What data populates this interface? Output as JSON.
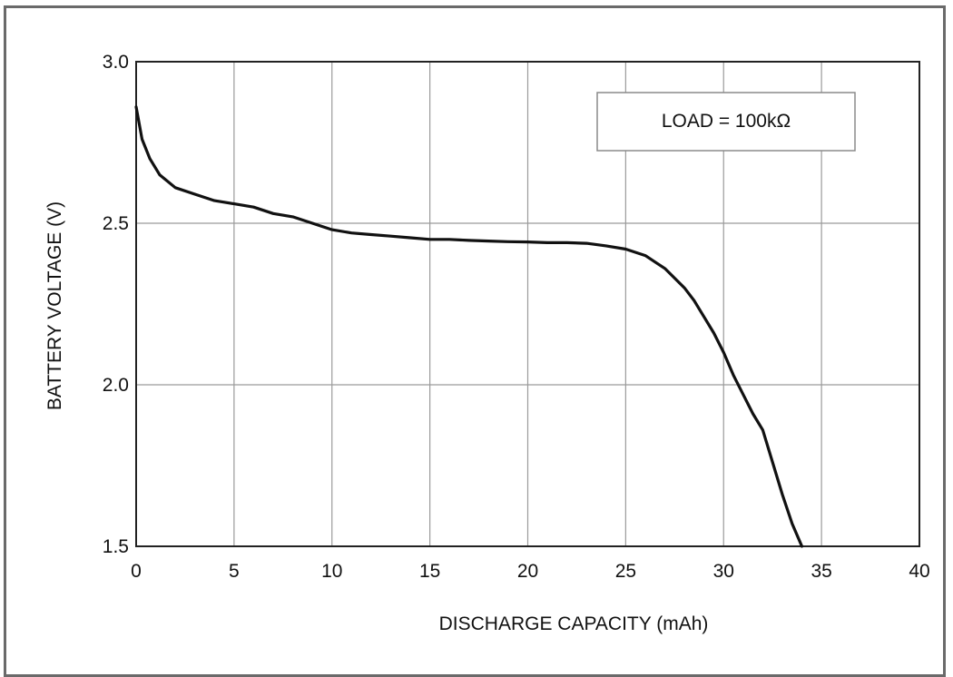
{
  "chart_data": {
    "type": "line",
    "title": "",
    "xlabel": "DISCHARGE CAPACITY (mAh)",
    "ylabel": "BATTERY VOLTAGE (V)",
    "xlim": [
      0,
      40
    ],
    "ylim": [
      1.5,
      3.0
    ],
    "xticks": [
      0,
      5,
      10,
      15,
      20,
      25,
      30,
      35,
      40
    ],
    "xtick_labels": [
      "0",
      "5",
      "10",
      "15",
      "20",
      "25",
      "30",
      "35",
      "40"
    ],
    "yticks": [
      1.5,
      2.0,
      2.5,
      3.0
    ],
    "ytick_labels": [
      "1.5",
      "2.0",
      "2.5",
      "3.0"
    ],
    "grid": true,
    "annotation": "LOAD = 100kΩ",
    "series": [
      {
        "x": [
          0,
          0.3,
          0.7,
          1.2,
          2,
          3,
          4,
          5,
          6,
          7,
          8,
          9,
          10,
          11,
          12,
          13,
          14,
          15,
          16,
          17,
          18,
          19,
          20,
          21,
          22,
          23,
          24,
          25,
          26,
          26.5,
          27,
          27.5,
          28,
          28.5,
          29,
          29.5,
          30,
          30.5,
          31,
          31.5,
          32,
          32.5,
          33,
          33.5,
          34
        ],
        "y": [
          2.86,
          2.76,
          2.7,
          2.65,
          2.61,
          2.59,
          2.57,
          2.56,
          2.55,
          2.53,
          2.52,
          2.5,
          2.48,
          2.47,
          2.465,
          2.46,
          2.455,
          2.45,
          2.45,
          2.447,
          2.445,
          2.443,
          2.442,
          2.44,
          2.44,
          2.438,
          2.43,
          2.42,
          2.4,
          2.38,
          2.36,
          2.33,
          2.3,
          2.26,
          2.21,
          2.16,
          2.1,
          2.03,
          1.97,
          1.91,
          1.86,
          1.76,
          1.66,
          1.57,
          1.5
        ],
        "color": "#111111"
      }
    ]
  }
}
